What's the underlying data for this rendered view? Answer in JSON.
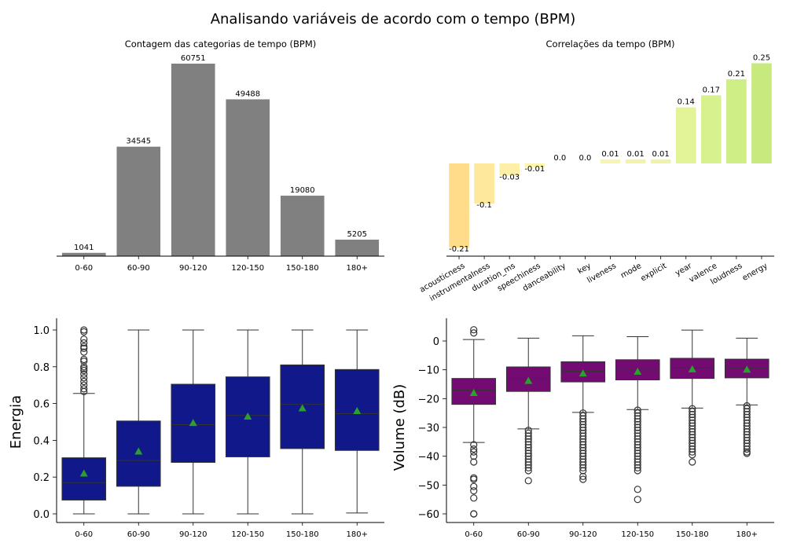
{
  "figure": {
    "title": "Analisando variáveis de acordo com o tempo (BPM)"
  },
  "chart_data": [
    {
      "type": "bar",
      "title": "Contagem das categorias de tempo (BPM)",
      "xlabel": "",
      "ylabel": "",
      "categories": [
        "0-60",
        "60-90",
        "90-120",
        "120-150",
        "150-180",
        "180+"
      ],
      "values": [
        1041,
        34545,
        60751,
        49488,
        19080,
        5205
      ],
      "data_labels": [
        "1041",
        "34545",
        "60751",
        "49488",
        "19080",
        "5205"
      ],
      "ylim": [
        0,
        60751
      ],
      "color": "#808080",
      "grid": false
    },
    {
      "type": "bar",
      "title": "Correlações da tempo (BPM)",
      "xlabel": "",
      "ylabel": "",
      "categories": [
        "acousticness",
        "instrumentalness",
        "duration_ms",
        "speechiness",
        "danceability",
        "key",
        "liveness",
        "mode",
        "explicit",
        "year",
        "valence",
        "loudness",
        "energy"
      ],
      "values": [
        -0.21,
        -0.1,
        -0.03,
        -0.01,
        0.0,
        0.0,
        0.01,
        0.01,
        0.01,
        0.14,
        0.17,
        0.21,
        0.25
      ],
      "data_labels": [
        "-0.21",
        "-0.1",
        "-0.03",
        "-0.01",
        "0.0",
        "0.0",
        "0.01",
        "0.01",
        "0.01",
        "0.14",
        "0.17",
        "0.21",
        "0.25"
      ],
      "colors": [
        "#fedc8a",
        "#fee89b",
        "#fdf0a6",
        "#fdf5ad",
        "#fcfab7",
        "#fbf9b7",
        "#f6f6b0",
        "#f3f4ac",
        "#eef3a9",
        "#e2f497",
        "#d8f18f",
        "#cfee86",
        "#c7e97d"
      ],
      "ylim": [
        -0.21,
        0.25
      ],
      "grid": false
    },
    {
      "type": "box",
      "title": "",
      "xlabel": "",
      "ylabel": "Energia",
      "categories": [
        "0-60",
        "60-90",
        "90-120",
        "120-150",
        "150-180",
        "180+"
      ],
      "y_ticks": [
        "0.0",
        "0.2",
        "0.4",
        "0.6",
        "0.8",
        "1.0"
      ],
      "ylim": [
        0,
        1.0
      ],
      "color": "#10188a",
      "mean_color": "#2ca02c",
      "boxes": [
        {
          "whislo": 0.0,
          "q1": 0.075,
          "med": 0.17,
          "q3": 0.305,
          "whishi": 0.655,
          "mean": 0.22,
          "fliers": [
            0.665,
            0.68,
            0.7,
            0.72,
            0.74,
            0.76,
            0.78,
            0.79,
            0.8,
            0.83,
            0.84,
            0.88,
            0.9,
            0.91,
            0.93,
            0.95,
            0.99,
            1.0
          ]
        },
        {
          "whislo": 0.0,
          "q1": 0.15,
          "med": 0.29,
          "q3": 0.505,
          "whishi": 1.0,
          "mean": 0.34,
          "fliers": []
        },
        {
          "whislo": 0.0,
          "q1": 0.28,
          "med": 0.485,
          "q3": 0.705,
          "whishi": 1.0,
          "mean": 0.495,
          "fliers": []
        },
        {
          "whislo": 0.0,
          "q1": 0.31,
          "med": 0.535,
          "q3": 0.745,
          "whishi": 1.0,
          "mean": 0.53,
          "fliers": []
        },
        {
          "whislo": 0.0,
          "q1": 0.355,
          "med": 0.595,
          "q3": 0.81,
          "whishi": 1.0,
          "mean": 0.575,
          "fliers": []
        },
        {
          "whislo": 0.005,
          "q1": 0.345,
          "med": 0.545,
          "q3": 0.785,
          "whishi": 1.0,
          "mean": 0.56,
          "fliers": []
        }
      ]
    },
    {
      "type": "box",
      "title": "",
      "xlabel": "",
      "ylabel": "Volume (dB)",
      "categories": [
        "0-60",
        "60-90",
        "90-120",
        "120-150",
        "150-180",
        "180+"
      ],
      "y_ticks": [
        "0",
        "−10",
        "−20",
        "−30",
        "−40",
        "−50",
        "−60"
      ],
      "ylim": [
        -60,
        0
      ],
      "color": "#730b73",
      "mean_color": "#2ca02c",
      "boxes": [
        {
          "whislo": -35.2,
          "q1": -22.0,
          "med": -17.0,
          "q3": -13.0,
          "whishi": 0.5,
          "mean": -18.0,
          "fliers": [
            3.9,
            2.8,
            -36.0,
            -37.5,
            -38.5,
            -40.0,
            -42.0,
            -47.5,
            -48.0,
            -50.5,
            -52.0,
            -54.5,
            -60.0,
            -60.0
          ]
        },
        {
          "whislo": -30.5,
          "q1": -17.5,
          "med": -13.0,
          "q3": -9.0,
          "whishi": 1.0,
          "mean": -13.8,
          "fliers": [
            -31,
            -32,
            -33,
            -34,
            -35,
            -36,
            -37,
            -38,
            -39,
            -40,
            -41,
            -42,
            -43,
            -44,
            -45,
            -48.5
          ]
        },
        {
          "whislo": -24.8,
          "q1": -14.2,
          "med": -10.5,
          "q3": -7.2,
          "whishi": 1.8,
          "mean": -11.2,
          "fliers": [
            -25,
            -26,
            -27,
            -28,
            -29,
            -30,
            -31,
            -32,
            -33,
            -34,
            -35,
            -36,
            -37,
            -38,
            -39,
            -40,
            -41,
            -42,
            -43,
            -44,
            -45,
            -47,
            -48
          ]
        },
        {
          "whislo": -23.8,
          "q1": -13.5,
          "med": -9.8,
          "q3": -6.5,
          "whishi": 1.5,
          "mean": -10.6,
          "fliers": [
            -24,
            -25,
            -26,
            -27,
            -28,
            -29,
            -30,
            -31,
            -32,
            -33,
            -34,
            -35,
            -36,
            -37,
            -38,
            -39,
            -40,
            -41,
            -42,
            -43,
            -44,
            -45,
            -51.5,
            -55
          ]
        },
        {
          "whislo": -23.3,
          "q1": -13.0,
          "med": -9.2,
          "q3": -6.0,
          "whishi": 3.8,
          "mean": -9.8,
          "fliers": [
            -23.5,
            -24.5,
            -25.5,
            -26.5,
            -27.5,
            -28.5,
            -29.5,
            -30.5,
            -31.5,
            -32.5,
            -33.5,
            -34.5,
            -35.5,
            -36.5,
            -37.5,
            -38.5,
            -39.5,
            -42
          ]
        },
        {
          "whislo": -22.2,
          "q1": -12.8,
          "med": -9.3,
          "q3": -6.3,
          "whishi": 1.0,
          "mean": -9.9,
          "fliers": [
            -22.5,
            -23.5,
            -24.5,
            -25.5,
            -26.5,
            -27.5,
            -28.5,
            -29.5,
            -30.5,
            -31.5,
            -32.5,
            -33.5,
            -34.5,
            -35.5,
            -36.5,
            -37.5,
            -38.5,
            -39
          ]
        }
      ]
    }
  ]
}
